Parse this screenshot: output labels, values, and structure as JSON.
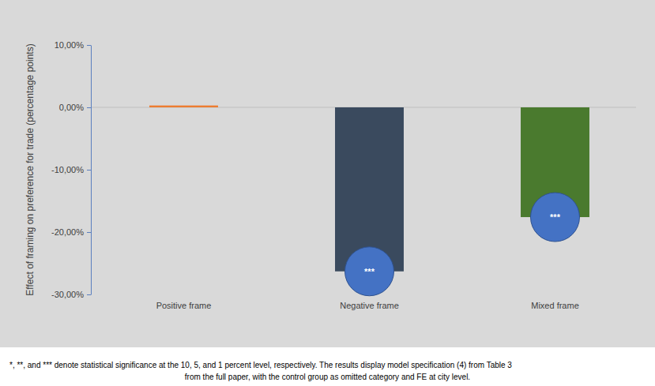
{
  "chart_data": {
    "type": "bar",
    "y_label": "Effect of framing on preference for trade (percentage points)",
    "categories": [
      "Positive frame",
      "Negative frame",
      "Mixed frame"
    ],
    "values": [
      0.3,
      -26.3,
      -17.6
    ],
    "colors": [
      "#ed7d31",
      "#3a4a5e",
      "#4a7a2e"
    ],
    "significance": [
      null,
      "***",
      "***"
    ],
    "ylim": [
      -30,
      10
    ],
    "yticks": [
      {
        "value": -30,
        "label": "-30,00%"
      },
      {
        "value": -20,
        "label": "-20,00%"
      },
      {
        "value": -10,
        "label": "-10,00%"
      },
      {
        "value": 0,
        "label": "0,00%"
      },
      {
        "value": 10,
        "label": "10,00%"
      }
    ],
    "grid": false,
    "notes": [
      "*, **, and *** denote statistical significance at the 10, 5, and 1 percent level, respectively. The results display model specification (4) from Table 3",
      "from the full paper, with the control group as omitted category and FE at city level."
    ]
  }
}
